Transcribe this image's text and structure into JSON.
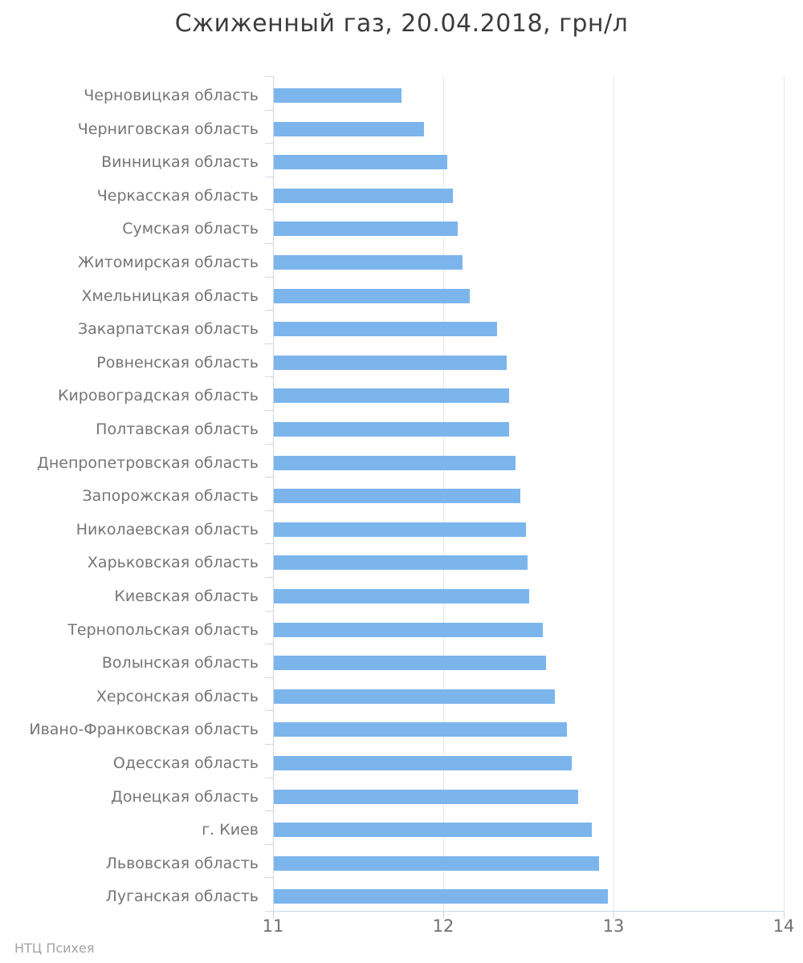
{
  "title": "Сжиженный газ, 20.04.2018, грн/л",
  "watermark": "НТЦ Психея",
  "colors": {
    "bar": "#7cb5ec",
    "axis_line": "#ccd6eb",
    "grid_line": "#e6e6e6",
    "title_text": "#3c3c3c",
    "category_text": "#757575",
    "tick_text": "#707070",
    "watermark_text": "#a3a3a3"
  },
  "chart_data": {
    "type": "bar",
    "title": "Сжиженный газ, 20.04.2018, грн/л",
    "xlabel": "",
    "ylabel": "",
    "legend": false,
    "grid": true,
    "value_axis": {
      "min": 11,
      "max": 14,
      "ticks": [
        11,
        12,
        13,
        14
      ]
    },
    "categories": [
      "Черновицкая область",
      "Черниговская область",
      "Винницкая область",
      "Черкасская область",
      "Сумская область",
      "Житомирская область",
      "Хмельницкая область",
      "Закарпатская область",
      "Ровненская область",
      "Кировоградская область",
      "Полтавская область",
      "Днепропетровская область",
      "Запорожская область",
      "Николаевская область",
      "Харьковская область",
      "Киевская область",
      "Тернопольская область",
      "Волынская область",
      "Херсонская область",
      "Ивано-Франковская область",
      "Одесская область",
      "Донецкая область",
      "г. Киев",
      "Львовская область",
      "Луганская область"
    ],
    "values": [
      11.75,
      11.88,
      12.02,
      12.05,
      12.08,
      12.11,
      12.15,
      12.31,
      12.37,
      12.38,
      12.38,
      12.42,
      12.45,
      12.48,
      12.49,
      12.5,
      12.58,
      12.6,
      12.65,
      12.72,
      12.75,
      12.79,
      12.87,
      12.91,
      12.96
    ]
  }
}
